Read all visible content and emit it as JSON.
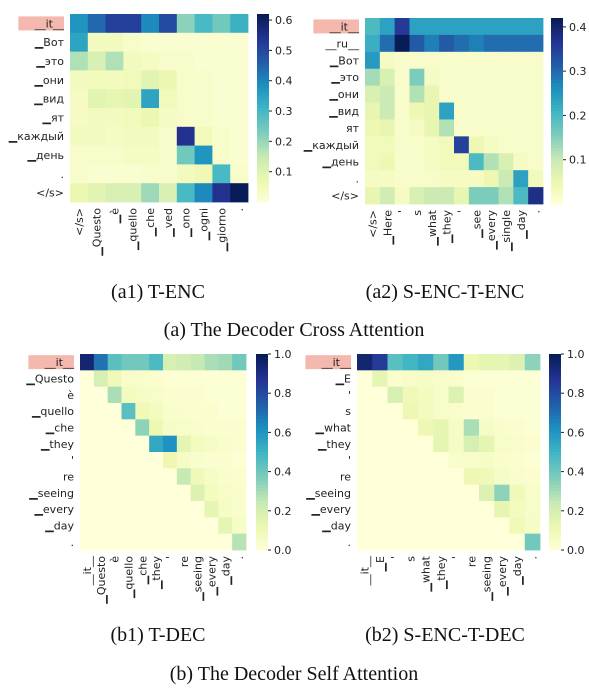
{
  "captions": {
    "a1": "(a1) T-ENC",
    "a2": "(a2) S-ENC-T-ENC",
    "a": "(a) The Decoder Cross Attention",
    "b1": "(b1) T-DEC",
    "b2": "(b2) S-ENC-T-DEC",
    "b": "(b) The Decoder Self Attention"
  },
  "colormap": "YlGnBu",
  "chart_data": [
    {
      "type": "heatmap",
      "title": "(a1) T-ENC",
      "ylabels": [
        "__it__",
        "▁Вот",
        "▁это",
        "▁они",
        "▁вид",
        "▁ят",
        "▁каждый",
        "▁день",
        ".",
        "</s>"
      ],
      "xlabels": [
        "</s>",
        "▁Questo",
        "▁è",
        "▁quello",
        "▁che",
        "▁ved",
        "▁ono",
        "▁ogni",
        "▁giorno",
        "."
      ],
      "highlight_row": 0,
      "vmax": 0.62,
      "cbar_ticks": [
        0.1,
        0.2,
        0.3,
        0.4,
        0.5,
        0.6
      ],
      "values": [
        [
          0.38,
          0.45,
          0.52,
          0.52,
          0.4,
          0.5,
          0.22,
          0.3,
          0.25,
          0.32
        ],
        [
          0.35,
          0.05,
          0.05,
          0.03,
          0.02,
          0.02,
          0.02,
          0.02,
          0.02,
          0.02
        ],
        [
          0.18,
          0.12,
          0.18,
          0.05,
          0.04,
          0.03,
          0.03,
          0.02,
          0.02,
          0.02
        ],
        [
          0.05,
          0.06,
          0.05,
          0.06,
          0.1,
          0.08,
          0.03,
          0.03,
          0.02,
          0.02
        ],
        [
          0.04,
          0.1,
          0.09,
          0.1,
          0.35,
          0.06,
          0.03,
          0.03,
          0.02,
          0.02
        ],
        [
          0.04,
          0.05,
          0.05,
          0.06,
          0.08,
          0.04,
          0.03,
          0.03,
          0.02,
          0.02
        ],
        [
          0.05,
          0.05,
          0.04,
          0.05,
          0.05,
          0.03,
          0.55,
          0.06,
          0.03,
          0.02
        ],
        [
          0.03,
          0.03,
          0.03,
          0.04,
          0.04,
          0.03,
          0.25,
          0.38,
          0.03,
          0.02
        ],
        [
          0.03,
          0.02,
          0.02,
          0.02,
          0.03,
          0.03,
          0.05,
          0.07,
          0.3,
          0.03
        ],
        [
          0.08,
          0.1,
          0.12,
          0.12,
          0.2,
          0.12,
          0.3,
          0.4,
          0.55,
          0.62
        ]
      ]
    },
    {
      "type": "heatmap",
      "title": "(a2) S-ENC-T-ENC",
      "ylabels": [
        "__it__",
        "__ru__",
        "▁Вот",
        "▁это",
        "▁они",
        "▁вид",
        "ят",
        "▁каждый",
        "▁день",
        ".",
        "</s>"
      ],
      "xlabels": [
        "</s>",
        "▁Here",
        "'",
        "s",
        "▁what",
        "▁they",
        "'",
        "▁see",
        "▁every",
        "▁single",
        "▁day",
        "."
      ],
      "highlight_row": 0,
      "vmax": 0.42,
      "cbar_ticks": [
        0.1,
        0.2,
        0.3,
        0.4
      ],
      "values": [
        [
          0.2,
          0.24,
          0.36,
          0.24,
          0.24,
          0.24,
          0.24,
          0.24,
          0.24,
          0.24,
          0.24,
          0.24
        ],
        [
          0.22,
          0.3,
          0.42,
          0.32,
          0.28,
          0.32,
          0.3,
          0.28,
          0.3,
          0.3,
          0.3,
          0.3
        ],
        [
          0.25,
          0.03,
          0.02,
          0.02,
          0.02,
          0.02,
          0.02,
          0.02,
          0.02,
          0.02,
          0.02,
          0.02
        ],
        [
          0.13,
          0.08,
          0.02,
          0.16,
          0.03,
          0.02,
          0.02,
          0.02,
          0.02,
          0.02,
          0.02,
          0.02
        ],
        [
          0.08,
          0.1,
          0.02,
          0.12,
          0.06,
          0.02,
          0.02,
          0.02,
          0.02,
          0.02,
          0.02,
          0.02
        ],
        [
          0.06,
          0.1,
          0.02,
          0.05,
          0.06,
          0.24,
          0.02,
          0.02,
          0.02,
          0.02,
          0.02,
          0.02
        ],
        [
          0.05,
          0.06,
          0.02,
          0.03,
          0.06,
          0.12,
          0.02,
          0.02,
          0.02,
          0.02,
          0.02,
          0.02
        ],
        [
          0.04,
          0.04,
          0.02,
          0.02,
          0.03,
          0.04,
          0.35,
          0.05,
          0.03,
          0.02,
          0.02,
          0.02
        ],
        [
          0.04,
          0.05,
          0.02,
          0.02,
          0.03,
          0.04,
          0.04,
          0.2,
          0.12,
          0.08,
          0.03,
          0.02
        ],
        [
          0.03,
          0.03,
          0.02,
          0.02,
          0.02,
          0.03,
          0.03,
          0.03,
          0.05,
          0.1,
          0.24,
          0.04
        ],
        [
          0.06,
          0.09,
          0.03,
          0.08,
          0.1,
          0.1,
          0.06,
          0.16,
          0.16,
          0.12,
          0.2,
          0.38
        ]
      ]
    },
    {
      "type": "heatmap",
      "title": "(b1) T-DEC",
      "ylabels": [
        "__it__",
        "▁Questo",
        "è",
        "▁quello",
        "▁che",
        "▁they",
        "'",
        "re",
        "▁seeing",
        "▁every",
        "▁day",
        "."
      ],
      "xlabels": [
        "__it__",
        "▁Questo",
        "è",
        "▁quello",
        "▁che",
        "▁they",
        "'",
        "re",
        "▁seeing",
        "▁every",
        "▁day",
        "."
      ],
      "highlight_row": 0,
      "vmax": 1.0,
      "cbar_ticks": [
        0.0,
        0.2,
        0.4,
        0.6,
        0.8,
        1.0
      ],
      "values": [
        [
          0.95,
          0.7,
          0.45,
          0.4,
          0.4,
          0.48,
          0.2,
          0.22,
          0.25,
          0.3,
          0.32,
          0.4
        ],
        [
          0.0,
          0.2,
          0.1,
          0.05,
          0.04,
          0.03,
          0.02,
          0.02,
          0.02,
          0.02,
          0.02,
          0.02
        ],
        [
          0.0,
          0.0,
          0.3,
          0.08,
          0.06,
          0.05,
          0.03,
          0.03,
          0.03,
          0.02,
          0.02,
          0.02
        ],
        [
          0.0,
          0.0,
          0.0,
          0.45,
          0.1,
          0.08,
          0.04,
          0.04,
          0.03,
          0.03,
          0.02,
          0.02
        ],
        [
          0.0,
          0.0,
          0.0,
          0.0,
          0.35,
          0.12,
          0.06,
          0.05,
          0.04,
          0.03,
          0.03,
          0.03
        ],
        [
          0.0,
          0.0,
          0.0,
          0.0,
          0.0,
          0.55,
          0.62,
          0.15,
          0.08,
          0.06,
          0.04,
          0.03
        ],
        [
          0.0,
          0.0,
          0.0,
          0.0,
          0.0,
          0.0,
          0.12,
          0.06,
          0.04,
          0.03,
          0.03,
          0.02
        ],
        [
          0.0,
          0.0,
          0.0,
          0.0,
          0.0,
          0.0,
          0.0,
          0.25,
          0.1,
          0.06,
          0.04,
          0.03
        ],
        [
          0.0,
          0.0,
          0.0,
          0.0,
          0.0,
          0.0,
          0.0,
          0.0,
          0.18,
          0.08,
          0.05,
          0.04
        ],
        [
          0.0,
          0.0,
          0.0,
          0.0,
          0.0,
          0.0,
          0.0,
          0.0,
          0.0,
          0.15,
          0.06,
          0.04
        ],
        [
          0.0,
          0.0,
          0.0,
          0.0,
          0.0,
          0.0,
          0.0,
          0.0,
          0.0,
          0.0,
          0.15,
          0.06
        ],
        [
          0.0,
          0.0,
          0.0,
          0.0,
          0.0,
          0.0,
          0.0,
          0.0,
          0.0,
          0.0,
          0.0,
          0.28
        ]
      ]
    },
    {
      "type": "heatmap",
      "title": "(b2) S-ENC-T-DEC",
      "ylabels": [
        "__it__",
        "▁E",
        "'",
        "s",
        "▁what",
        "▁they",
        "'",
        "re",
        "▁seeing",
        "▁every",
        "▁day",
        "."
      ],
      "xlabels": [
        "__it__",
        "▁E",
        "'",
        "s",
        "▁what",
        "▁they",
        "'",
        "re",
        "▁seeing",
        "▁every",
        "▁day",
        "."
      ],
      "highlight_row": 0,
      "vmax": 1.0,
      "cbar_ticks": [
        0.0,
        0.2,
        0.4,
        0.6,
        0.8,
        1.0
      ],
      "values": [
        [
          0.95,
          0.85,
          0.45,
          0.5,
          0.55,
          0.4,
          0.6,
          0.12,
          0.15,
          0.15,
          0.18,
          0.35
        ],
        [
          0.0,
          0.15,
          0.03,
          0.05,
          0.06,
          0.05,
          0.04,
          0.02,
          0.02,
          0.02,
          0.02,
          0.02
        ],
        [
          0.0,
          0.0,
          0.2,
          0.1,
          0.08,
          0.05,
          0.18,
          0.03,
          0.03,
          0.02,
          0.02,
          0.02
        ],
        [
          0.0,
          0.0,
          0.0,
          0.12,
          0.08,
          0.05,
          0.04,
          0.03,
          0.03,
          0.02,
          0.02,
          0.02
        ],
        [
          0.0,
          0.0,
          0.0,
          0.0,
          0.12,
          0.15,
          0.06,
          0.3,
          0.06,
          0.04,
          0.03,
          0.02
        ],
        [
          0.0,
          0.0,
          0.0,
          0.0,
          0.0,
          0.15,
          0.06,
          0.2,
          0.15,
          0.05,
          0.04,
          0.03
        ],
        [
          0.0,
          0.0,
          0.0,
          0.0,
          0.0,
          0.0,
          0.04,
          0.05,
          0.06,
          0.04,
          0.03,
          0.02
        ],
        [
          0.0,
          0.0,
          0.0,
          0.0,
          0.0,
          0.0,
          0.0,
          0.12,
          0.1,
          0.06,
          0.04,
          0.03
        ],
        [
          0.0,
          0.0,
          0.0,
          0.0,
          0.0,
          0.0,
          0.0,
          0.0,
          0.18,
          0.35,
          0.1,
          0.05
        ],
        [
          0.0,
          0.0,
          0.0,
          0.0,
          0.0,
          0.0,
          0.0,
          0.0,
          0.0,
          0.15,
          0.08,
          0.05
        ],
        [
          0.0,
          0.0,
          0.0,
          0.0,
          0.0,
          0.0,
          0.0,
          0.0,
          0.0,
          0.0,
          0.1,
          0.06
        ],
        [
          0.0,
          0.0,
          0.0,
          0.0,
          0.0,
          0.0,
          0.0,
          0.0,
          0.0,
          0.0,
          0.0,
          0.4
        ]
      ]
    }
  ]
}
